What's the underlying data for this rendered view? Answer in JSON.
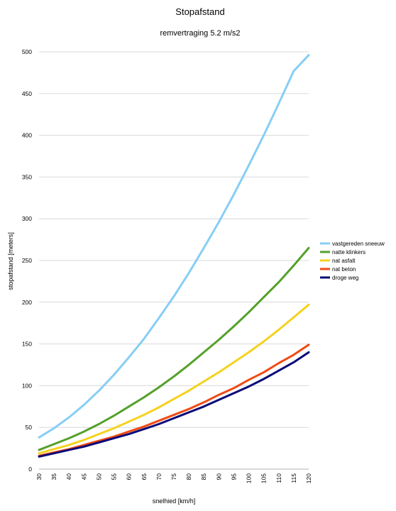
{
  "chart_data": {
    "type": "line",
    "title": "Stopafstand",
    "subtitle": "remvertraging 5.2 m/s2",
    "xlabel": "snelhied [km/h]",
    "ylabel": "stopafstand [meters]",
    "x": [
      30,
      35,
      40,
      45,
      50,
      55,
      60,
      65,
      70,
      75,
      80,
      85,
      90,
      95,
      100,
      105,
      110,
      115,
      120
    ],
    "xticks": [
      "30",
      "35",
      "40",
      "45",
      "50",
      "55",
      "60",
      "65",
      "70",
      "75",
      "80",
      "85",
      "90",
      "95",
      "100",
      "105",
      "110",
      "115",
      "120"
    ],
    "ylim": [
      0,
      500
    ],
    "yticks": [
      "0",
      "50",
      "100",
      "150",
      "200",
      "250",
      "300",
      "350",
      "400",
      "450",
      "500"
    ],
    "grid": true,
    "legend_position": "right",
    "series": [
      {
        "name": "vastgereden sneeuw",
        "color": "#87CEF5",
        "values": [
          38,
          49,
          62,
          77,
          94,
          113,
          134,
          156,
          181,
          207,
          235,
          265,
          296,
          329,
          364,
          400,
          438,
          477,
          496
        ]
      },
      {
        "name": "natte klinkers",
        "color": "#54A02A",
        "values": [
          23,
          30,
          37,
          45,
          54,
          64,
          75,
          86,
          98,
          111,
          125,
          140,
          155,
          171,
          188,
          206,
          224,
          244,
          265
        ]
      },
      {
        "name": "nat asfalt",
        "color": "#F5D21E",
        "values": [
          19,
          24,
          29,
          35,
          42,
          49,
          57,
          65,
          74,
          84,
          94,
          105,
          116,
          128,
          140,
          153,
          167,
          182,
          197
        ]
      },
      {
        "name": "nat beton",
        "color": "#F04A14",
        "values": [
          16,
          20,
          24,
          29,
          34,
          39,
          45,
          51,
          58,
          65,
          72,
          80,
          89,
          97,
          107,
          116,
          127,
          137,
          149
        ]
      },
      {
        "name": "droge weg",
        "color": "#0A0A78",
        "values": [
          15,
          19,
          23,
          27,
          32,
          37,
          42,
          48,
          54,
          61,
          68,
          75,
          83,
          91,
          99,
          108,
          118,
          128,
          140
        ]
      }
    ]
  }
}
